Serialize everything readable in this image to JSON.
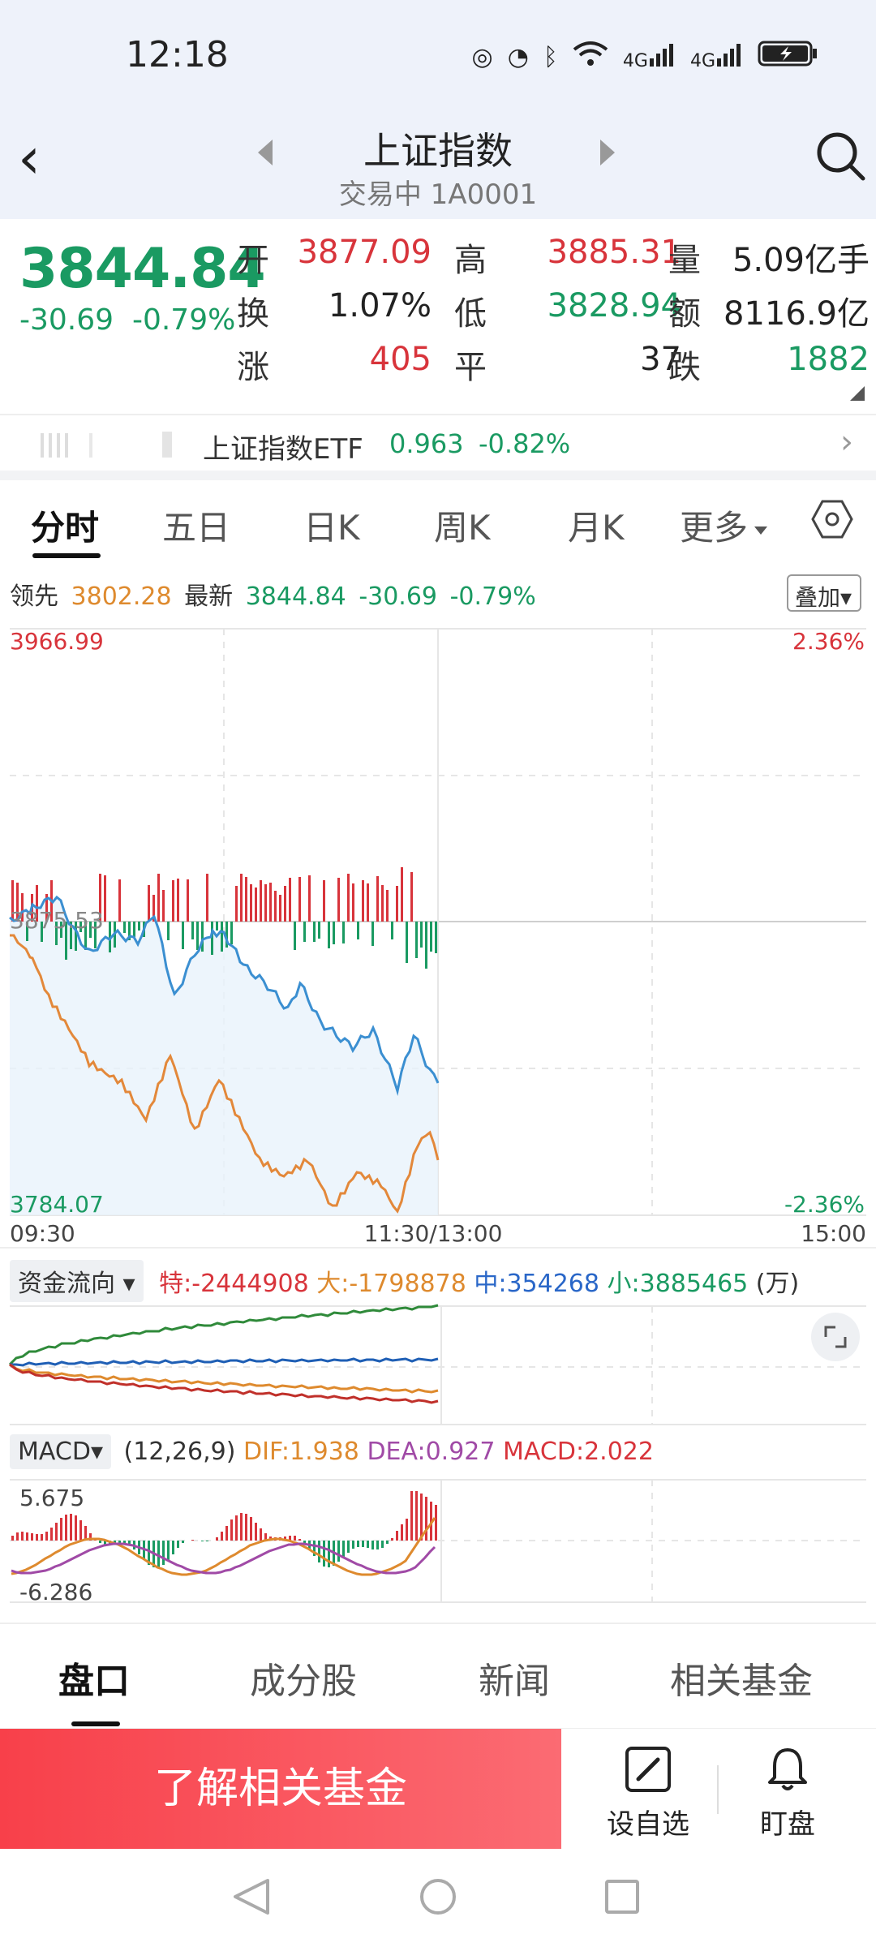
{
  "status_bar": {
    "time": "12:18",
    "net1": "4G",
    "net2": "4G"
  },
  "header": {
    "title": "上证指数",
    "subtitle": "交易中 1A0001"
  },
  "quote": {
    "price": "3844.84",
    "change": "-30.69",
    "change_pct": "-0.79%",
    "open_label": "开",
    "open": "3877.09",
    "high_label": "高",
    "high": "3885.31",
    "volume_label": "量",
    "volume": "5.09亿手",
    "turnover_label": "换",
    "turnover": "1.07%",
    "low_label": "低",
    "low": "3828.94",
    "amount_label": "额",
    "amount": "8116.9亿",
    "up_label": "涨",
    "up": "405",
    "flat_label": "平",
    "flat": "37",
    "down_label": "跌",
    "down": "1882"
  },
  "etf": {
    "name": "上证指数ETF",
    "price": "0.963",
    "change_pct": "-0.82%"
  },
  "chart_tabs": [
    "分时",
    "五日",
    "日K",
    "周K",
    "月K",
    "更多"
  ],
  "info_line": {
    "lead_label": "领先",
    "lead_value": "3802.28",
    "latest_label": "最新",
    "latest_value": "3844.84",
    "change": "-30.69",
    "change_pct": "-0.79%",
    "overlay_label": "叠加"
  },
  "intraday": {
    "y_top": "3966.99",
    "y_bottom": "3784.07",
    "pct_top": "2.36%",
    "pct_bottom": "-2.36%",
    "mid_label": "3875.53",
    "x_start": "09:30",
    "x_mid": "11:30/13:00",
    "x_end": "15:00"
  },
  "money_flow": {
    "select_label": "资金流向",
    "te": "特:-2444908",
    "da": "大:-1798878",
    "zhong": "中:354268",
    "xiao": "小:3885465",
    "unit": "(万)"
  },
  "macd": {
    "select_label": "MACD",
    "params": "(12,26,9)",
    "dif": "DIF:1.938",
    "dea": "DEA:0.927",
    "macd": "MACD:2.022",
    "y_top": "5.675",
    "y_bottom": "-6.286"
  },
  "bottom_tabs": [
    "盘口",
    "成分股",
    "新闻",
    "相关基金"
  ],
  "actions": {
    "cta": "了解相关基金",
    "add_watch": "设自选",
    "watch": "盯盘"
  },
  "colors": {
    "up": "#d8343b",
    "down": "#1a9a62",
    "price_line": "#3b8fd1",
    "lead_line": "#e3883a"
  }
}
